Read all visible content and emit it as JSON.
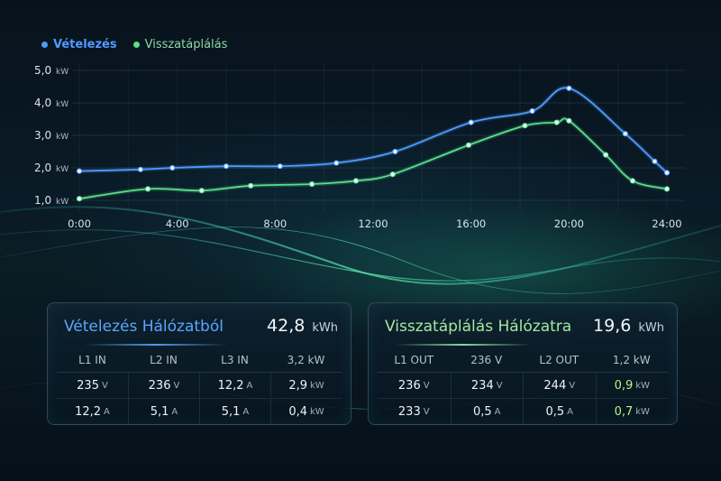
{
  "legend": {
    "import_label": "Vételezés",
    "export_label": "Visszatáplálás",
    "import_color": "#4f9cff",
    "export_color": "#58e08a"
  },
  "chart_data": {
    "type": "line",
    "ylabels": [
      "5,0",
      "4,0",
      "3,0",
      "2,0",
      "1,0"
    ],
    "yunit": "kW",
    "xlabels": [
      "0:00",
      "4:00",
      "8:00",
      "12:00",
      "16:00",
      "20:00",
      "24:00"
    ],
    "xlim": [
      0,
      24
    ],
    "ylim": [
      1,
      5
    ],
    "series": [
      {
        "name": "Vételezés",
        "color": "#4f9cff",
        "x": [
          0,
          2.5,
          3.8,
          6,
          8.2,
          10.5,
          12.9,
          16,
          18.5,
          20,
          22.3,
          23.5,
          24
        ],
        "y": [
          1.9,
          1.95,
          2.0,
          2.05,
          2.05,
          2.15,
          2.5,
          3.4,
          3.75,
          4.45,
          3.05,
          2.2,
          1.85
        ]
      },
      {
        "name": "Visszatáplálás",
        "color": "#58e08a",
        "x": [
          0,
          2.8,
          5,
          7,
          9.5,
          11.3,
          12.8,
          15.9,
          18.2,
          19.5,
          20,
          21.5,
          22.6,
          24
        ],
        "y": [
          1.05,
          1.35,
          1.3,
          1.45,
          1.5,
          1.6,
          1.8,
          2.7,
          3.3,
          3.4,
          3.45,
          2.4,
          1.6,
          1.35
        ]
      }
    ]
  },
  "import_panel": {
    "title": "Vételezés Hálózatból",
    "total_value": "42,8",
    "total_unit": "kWh",
    "headers": [
      "L1 IN",
      "L2 IN",
      "L3 IN",
      "3,2 kW"
    ],
    "rows": [
      [
        {
          "v": "235",
          "u": "V"
        },
        {
          "v": "236",
          "u": "V"
        },
        {
          "v": "12,2",
          "u": "A"
        },
        {
          "v": "2,9",
          "u": "kW"
        }
      ],
      [
        {
          "v": "12,2",
          "u": "A"
        },
        {
          "v": "5,1",
          "u": "A"
        },
        {
          "v": "5,1",
          "u": "A"
        },
        {
          "v": "0,4",
          "u": "kW"
        }
      ]
    ]
  },
  "export_panel": {
    "title": "Visszatáplálás Hálózatra",
    "total_value": "19,6",
    "total_unit": "kWh",
    "headers": [
      "L1 OUT",
      "236 V",
      "L2 OUT",
      "1,2 kW"
    ],
    "rows": [
      [
        {
          "v": "236",
          "u": "V"
        },
        {
          "v": "234",
          "u": "V"
        },
        {
          "v": "244",
          "u": "V"
        },
        {
          "v": "0,9",
          "u": "kW"
        }
      ],
      [
        {
          "v": "233",
          "u": "V"
        },
        {
          "v": "0,5",
          "u": "A"
        },
        {
          "v": "0,5",
          "u": "A"
        },
        {
          "v": "0,7",
          "u": "kW"
        }
      ]
    ]
  }
}
